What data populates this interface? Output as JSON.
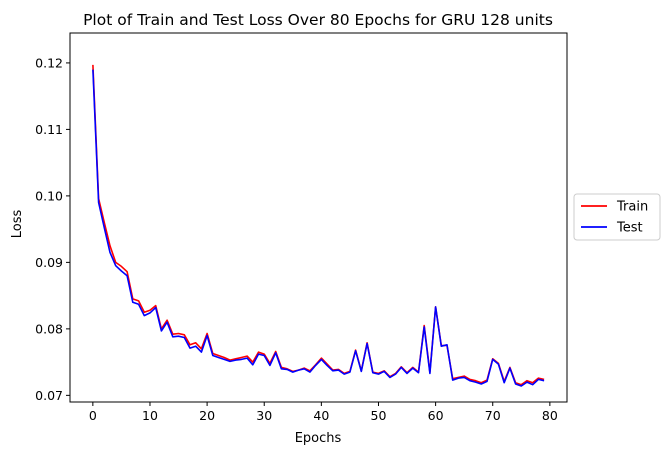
{
  "chart_data": {
    "type": "line",
    "title": "Plot of Train and Test Loss Over 80 Epochs for GRU 128 units",
    "xlabel": "Epochs",
    "ylabel": "Loss",
    "xlim": [
      -4,
      83
    ],
    "ylim": [
      0.069,
      0.1245
    ],
    "xticks": [
      0,
      10,
      20,
      30,
      40,
      50,
      60,
      70,
      80
    ],
    "yticks": [
      0.07,
      0.08,
      0.09,
      0.1,
      0.11,
      0.12
    ],
    "ytick_labels": [
      "0.07",
      "0.08",
      "0.09",
      "0.10",
      "0.11",
      "0.12"
    ],
    "grid": false,
    "legend_position": "center-right outside",
    "x": [
      0,
      1,
      2,
      3,
      4,
      5,
      6,
      7,
      8,
      9,
      10,
      11,
      12,
      13,
      14,
      15,
      16,
      17,
      18,
      19,
      20,
      21,
      22,
      23,
      24,
      25,
      26,
      27,
      28,
      29,
      30,
      31,
      32,
      33,
      34,
      35,
      36,
      37,
      38,
      39,
      40,
      41,
      42,
      43,
      44,
      45,
      46,
      47,
      48,
      49,
      50,
      51,
      52,
      53,
      54,
      55,
      56,
      57,
      58,
      59,
      60,
      61,
      62,
      63,
      64,
      65,
      66,
      67,
      68,
      69,
      70,
      71,
      72,
      73,
      74,
      75,
      76,
      77,
      78,
      79
    ],
    "series": [
      {
        "name": "Train",
        "color": "#ff0000",
        "values": [
          0.1197,
          0.0996,
          0.096,
          0.0925,
          0.09,
          0.0894,
          0.0886,
          0.0845,
          0.0842,
          0.0825,
          0.0828,
          0.0835,
          0.08,
          0.0813,
          0.0792,
          0.0793,
          0.0791,
          0.0776,
          0.0779,
          0.077,
          0.0793,
          0.0763,
          0.076,
          0.0757,
          0.0753,
          0.0755,
          0.0757,
          0.0759,
          0.075,
          0.0765,
          0.0762,
          0.0748,
          0.0766,
          0.0742,
          0.074,
          0.0736,
          0.0738,
          0.0741,
          0.0737,
          0.0746,
          0.0756,
          0.0747,
          0.0738,
          0.0739,
          0.0733,
          0.0736,
          0.0768,
          0.0737,
          0.0779,
          0.0735,
          0.0733,
          0.0737,
          0.0728,
          0.0733,
          0.0743,
          0.0734,
          0.0742,
          0.0735,
          0.0805,
          0.0735,
          0.0833,
          0.0775,
          0.0775,
          0.0725,
          0.0727,
          0.0729,
          0.0724,
          0.0722,
          0.0719,
          0.0723,
          0.0755,
          0.0748,
          0.0721,
          0.0742,
          0.0719,
          0.0716,
          0.0722,
          0.0719,
          0.0726,
          0.0724
        ]
      },
      {
        "name": "Test",
        "color": "#0000ff",
        "values": [
          0.119,
          0.099,
          0.0952,
          0.0915,
          0.0895,
          0.0887,
          0.088,
          0.084,
          0.0837,
          0.082,
          0.0824,
          0.0832,
          0.0797,
          0.081,
          0.0788,
          0.0789,
          0.0787,
          0.0771,
          0.0774,
          0.0765,
          0.079,
          0.076,
          0.0757,
          0.0754,
          0.0751,
          0.0753,
          0.0754,
          0.0756,
          0.0746,
          0.0762,
          0.076,
          0.0745,
          0.0764,
          0.074,
          0.0739,
          0.0735,
          0.0738,
          0.074,
          0.0735,
          0.0745,
          0.0754,
          0.0745,
          0.0737,
          0.0738,
          0.0732,
          0.0735,
          0.0767,
          0.0736,
          0.0778,
          0.0734,
          0.0732,
          0.0736,
          0.0727,
          0.0732,
          0.0742,
          0.0733,
          0.0741,
          0.0734,
          0.0803,
          0.0733,
          0.0833,
          0.0774,
          0.0776,
          0.0723,
          0.0726,
          0.0727,
          0.0722,
          0.072,
          0.0717,
          0.0721,
          0.0754,
          0.0747,
          0.0719,
          0.0741,
          0.0717,
          0.0714,
          0.072,
          0.0716,
          0.0724,
          0.0722
        ]
      }
    ]
  }
}
